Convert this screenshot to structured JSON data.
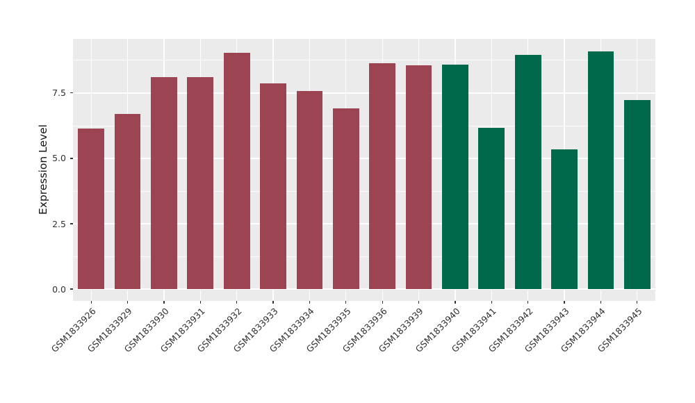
{
  "chart_data": {
    "type": "bar",
    "title": "",
    "xlabel": "",
    "ylabel": "Expression Level",
    "categories": [
      "GSM1833926",
      "GSM1833929",
      "GSM1833930",
      "GSM1833931",
      "GSM1833932",
      "GSM1833933",
      "GSM1833934",
      "GSM1833935",
      "GSM1833936",
      "GSM1833939",
      "GSM1833940",
      "GSM1833941",
      "GSM1833942",
      "GSM1833943",
      "GSM1833944",
      "GSM1833945"
    ],
    "values": [
      6.15,
      6.7,
      8.1,
      8.1,
      9.05,
      7.87,
      7.58,
      6.9,
      8.64,
      8.55,
      8.6,
      6.17,
      8.96,
      5.35,
      9.1,
      7.23
    ],
    "bar_colors": [
      "#9C4451",
      "#9C4451",
      "#9C4451",
      "#9C4451",
      "#9C4451",
      "#9C4451",
      "#9C4451",
      "#9C4451",
      "#9C4451",
      "#9C4451",
      "#00684B",
      "#00684B",
      "#00684B",
      "#00684B",
      "#00684B",
      "#00684B"
    ],
    "ytick_labels": [
      "0.0",
      "2.5",
      "5.0",
      "7.5"
    ],
    "ytick_values": [
      0,
      2.5,
      5,
      7.5
    ],
    "yminor_values": [
      1.25,
      3.75,
      6.25,
      8.75
    ],
    "ylim": [
      -0.45,
      9.57
    ],
    "grid": true,
    "legend": false,
    "style": {
      "panel_background": "#EBEBEB",
      "gridline_color": "#FFFFFF",
      "axis_text_color": "#303030",
      "axis_title_color": "#111111",
      "color_group_a": "#9C4451",
      "color_group_b": "#00684B"
    }
  }
}
